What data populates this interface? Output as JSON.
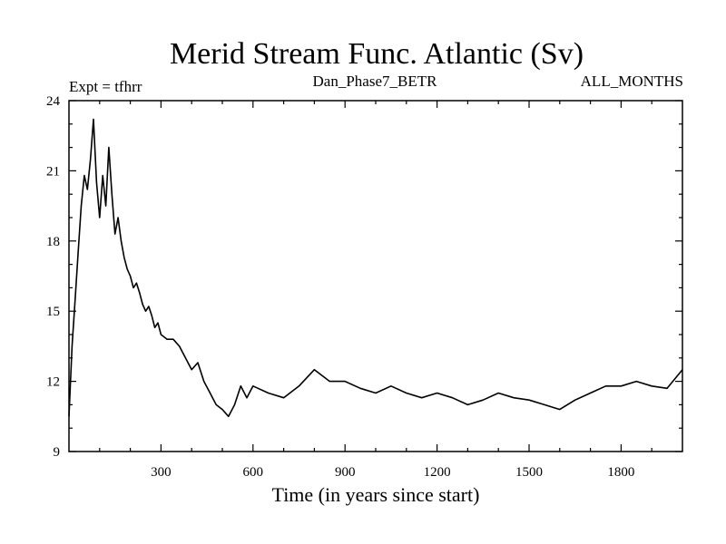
{
  "chart_data": {
    "type": "line",
    "title": "Merid Stream Func. Atlantic (Sv)",
    "annotations": {
      "left": "Expt = tfhrr",
      "center": "Dan_Phase7_BETR",
      "right": "ALL_MONTHS"
    },
    "xlabel": "Time (in years since start)",
    "ylabel": "",
    "xlim": [
      0,
      2000
    ],
    "ylim": [
      9,
      24
    ],
    "xticks": [
      300,
      600,
      900,
      1200,
      1500,
      1800
    ],
    "yticks": [
      9,
      12,
      15,
      18,
      21,
      24
    ],
    "grid": false,
    "series": [
      {
        "x": [
          0,
          10,
          20,
          30,
          40,
          50,
          60,
          70,
          80,
          90,
          100,
          110,
          120,
          130,
          140,
          150,
          160,
          170,
          180,
          190,
          200,
          210,
          220,
          230,
          240,
          250,
          260,
          270,
          280,
          290,
          300,
          320,
          340,
          360,
          380,
          400,
          420,
          440,
          460,
          480,
          500,
          520,
          540,
          560,
          580,
          600,
          650,
          700,
          750,
          800,
          850,
          900,
          950,
          1000,
          1050,
          1100,
          1150,
          1200,
          1250,
          1300,
          1350,
          1400,
          1450,
          1500,
          1550,
          1600,
          1650,
          1700,
          1750,
          1800,
          1850,
          1900,
          1950,
          2000
        ],
        "values": [
          10.5,
          13.5,
          15.5,
          17.5,
          19.5,
          20.8,
          20.2,
          21.5,
          23.2,
          20.5,
          19.0,
          20.8,
          19.5,
          22.0,
          20.0,
          18.3,
          19.0,
          18.0,
          17.3,
          16.8,
          16.5,
          16.0,
          16.2,
          15.8,
          15.3,
          15.0,
          15.2,
          14.8,
          14.3,
          14.5,
          14.0,
          13.8,
          13.8,
          13.5,
          13.0,
          12.5,
          12.8,
          12.0,
          11.5,
          11.0,
          10.8,
          10.5,
          11.0,
          11.8,
          11.3,
          11.8,
          11.5,
          11.3,
          11.8,
          12.5,
          12.0,
          12.0,
          11.7,
          11.5,
          11.8,
          11.5,
          11.3,
          11.5,
          11.3,
          11.0,
          11.2,
          11.5,
          11.3,
          11.2,
          11.0,
          10.8,
          11.2,
          11.5,
          11.8,
          11.8,
          12.0,
          11.8,
          11.7,
          12.5
        ]
      }
    ]
  }
}
